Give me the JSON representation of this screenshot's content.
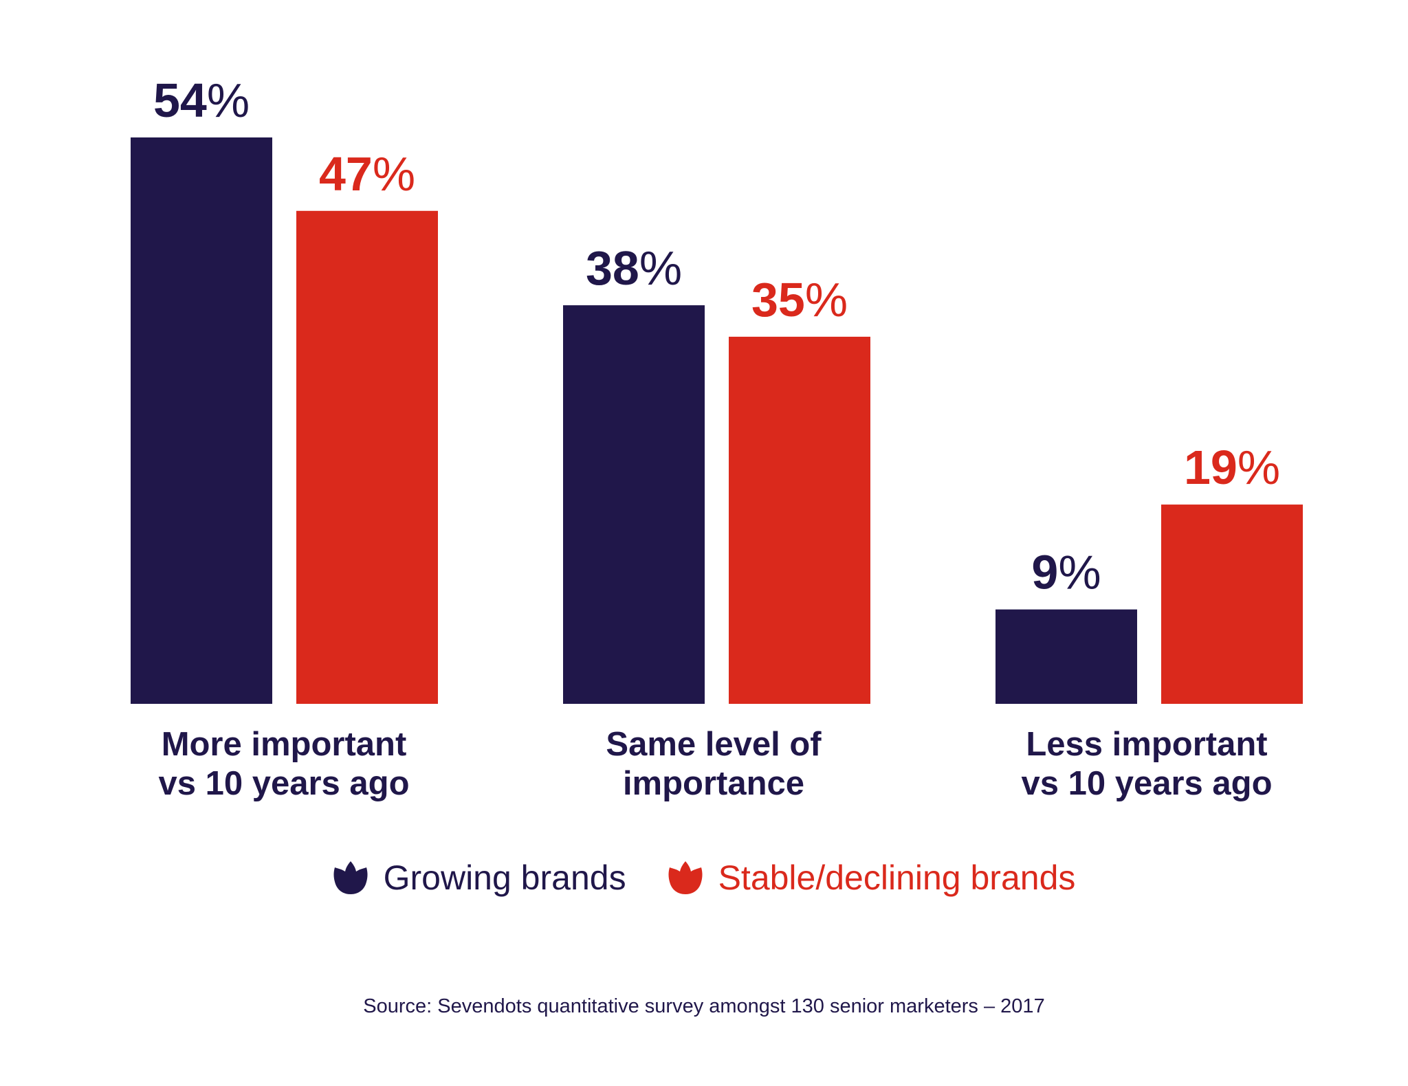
{
  "chart_data": {
    "type": "bar",
    "categories": [
      "More important vs 10 years ago",
      "Same level of importance",
      "Less important vs 10 years ago"
    ],
    "category_lines": [
      [
        "More important",
        "vs 10 years ago"
      ],
      [
        "Same level of",
        "importance"
      ],
      [
        "Less important",
        "vs 10 years ago"
      ]
    ],
    "series": [
      {
        "name": "Growing brands",
        "color": "#20174a",
        "values": [
          54,
          38,
          9
        ]
      },
      {
        "name": "Stable/declining brands",
        "color": "#da291c",
        "values": [
          47,
          35,
          19
        ]
      }
    ],
    "value_suffix": "%",
    "ylim": [
      0,
      60
    ],
    "grid": false,
    "legend_position": "bottom",
    "legend_icon": "tulip-icon"
  },
  "source": "Source: Sevendots quantitative survey amongst 130 senior marketers – 2017"
}
